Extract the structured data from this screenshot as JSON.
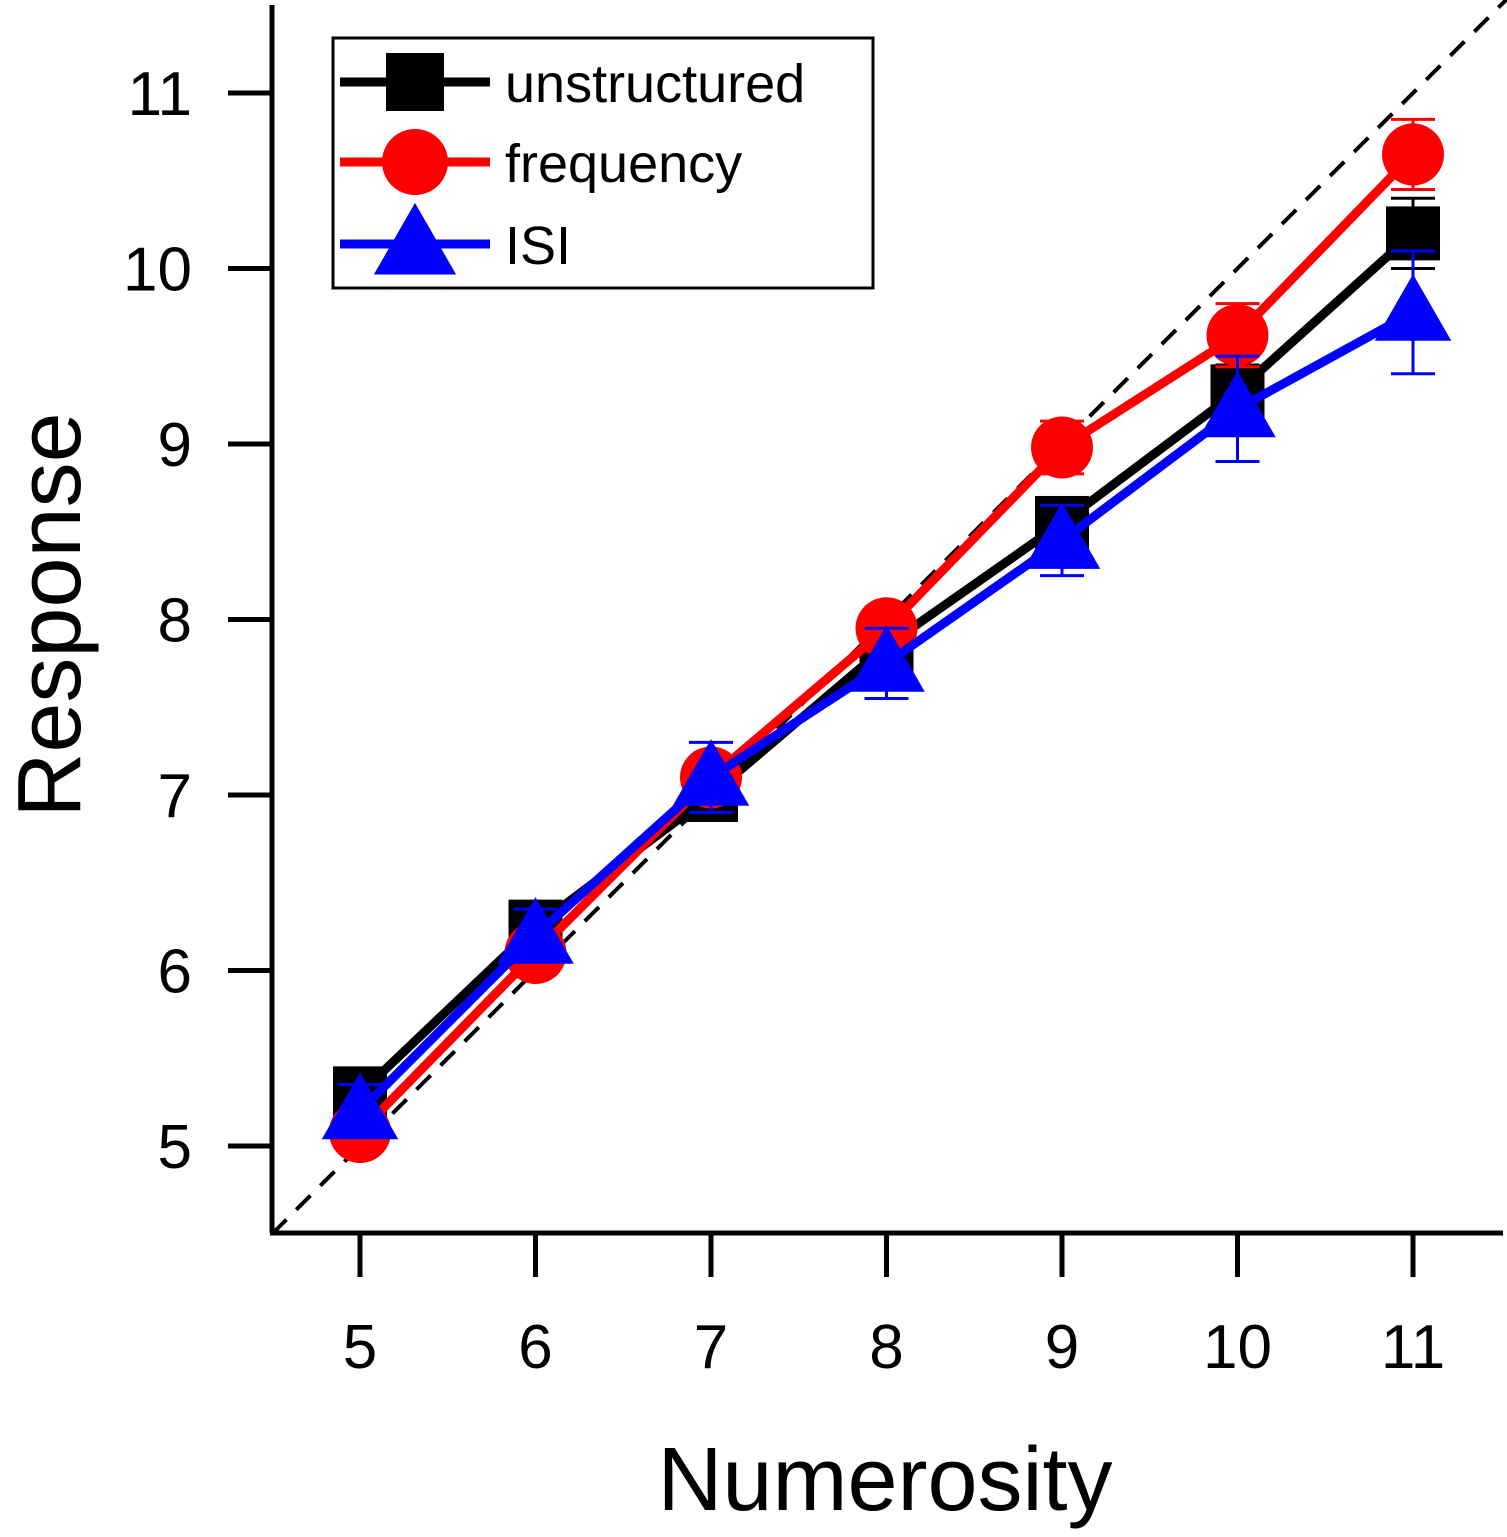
{
  "chart_data": {
    "type": "line",
    "title": "",
    "xlabel": "Numerosity",
    "ylabel": "Response",
    "x": [
      5,
      6,
      7,
      8,
      9,
      10,
      11
    ],
    "x_ticks": [
      "5",
      "6",
      "7",
      "8",
      "9",
      "10",
      "11"
    ],
    "y_ticks": [
      "5",
      "6",
      "7",
      "8",
      "9",
      "10",
      "11"
    ],
    "xlim": [
      4.5,
      11.5
    ],
    "ylim": [
      4.5,
      11.5
    ],
    "grid": false,
    "legend_position": "top-left",
    "reference_line": "identity (dashed)",
    "series": [
      {
        "name": "unstructured",
        "color": "#000000",
        "marker": "square",
        "values": [
          5.3,
          6.25,
          7.0,
          7.85,
          8.55,
          9.3,
          10.2
        ],
        "errors": [
          0.1,
          0.1,
          0.12,
          0.12,
          0.13,
          0.15,
          0.2
        ]
      },
      {
        "name": "frequency",
        "color": "#ff0000",
        "marker": "circle",
        "values": [
          5.08,
          6.1,
          7.1,
          7.95,
          8.98,
          9.62,
          10.65
        ],
        "errors": [
          0.08,
          0.08,
          0.1,
          0.12,
          0.15,
          0.18,
          0.2
        ]
      },
      {
        "name": "ISI",
        "color": "#0000ff",
        "marker": "triangle",
        "values": [
          5.2,
          6.2,
          7.1,
          7.75,
          8.45,
          9.2,
          9.75
        ],
        "errors": [
          0.15,
          0.15,
          0.2,
          0.2,
          0.2,
          0.3,
          0.35
        ]
      }
    ]
  }
}
